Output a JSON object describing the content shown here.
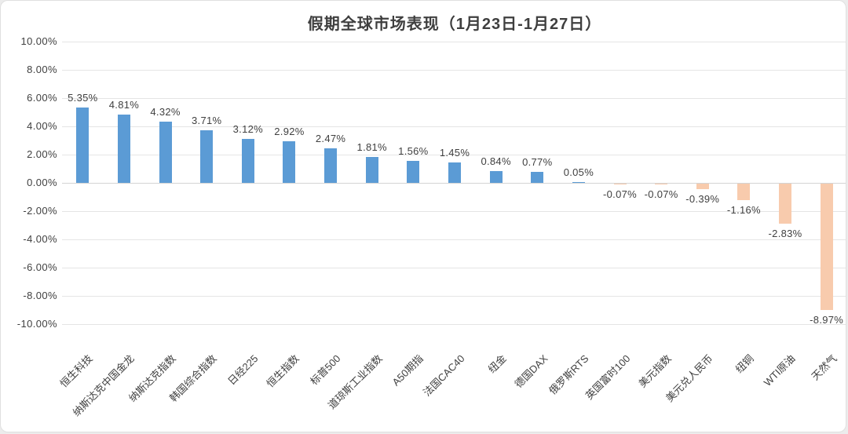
{
  "chart_data": {
    "type": "bar",
    "title": "假期全球市场表现（1月23日-1月27日）",
    "categories": [
      "恒生科技",
      "纳斯达克中国金龙",
      "纳斯达克指数",
      "韩国综合指数",
      "日经225",
      "恒生指数",
      "标普500",
      "道琼斯工业指数",
      "A50期指",
      "法国CAC40",
      "纽金",
      "德国DAX",
      "俄罗斯RTS",
      "英国富时100",
      "美元指数",
      "美元兑人民币",
      "纽铜",
      "WTI原油",
      "天然气"
    ],
    "values": [
      5.35,
      4.81,
      4.32,
      3.71,
      3.12,
      2.92,
      2.47,
      1.81,
      1.56,
      1.45,
      0.84,
      0.77,
      0.05,
      -0.07,
      -0.07,
      -0.39,
      -1.16,
      -2.83,
      -8.97
    ],
    "data_labels": [
      "5.35%",
      "4.81%",
      "4.32%",
      "3.71%",
      "3.12%",
      "2.92%",
      "2.47%",
      "1.81%",
      "1.56%",
      "1.45%",
      "0.84%",
      "0.77%",
      "0.05%",
      "-0.07%",
      "-0.07%",
      "-0.39%",
      "-1.16%",
      "-2.83%",
      "-8.97%"
    ],
    "xlabel": "",
    "ylabel": "",
    "ylim": [
      -10,
      10
    ],
    "grid": true,
    "legend": false,
    "y_axis": {
      "ticks": [
        {
          "value": 10,
          "label": "10.00%"
        },
        {
          "value": 8,
          "label": "8.00%"
        },
        {
          "value": 6,
          "label": "6.00%"
        },
        {
          "value": 4,
          "label": "4.00%"
        },
        {
          "value": 2,
          "label": "2.00%"
        },
        {
          "value": 0,
          "label": "0.00%"
        },
        {
          "value": -2,
          "label": "-2.00%"
        },
        {
          "value": -4,
          "label": "-4.00%"
        },
        {
          "value": -6,
          "label": "-6.00%"
        },
        {
          "value": -8,
          "label": "-8.00%"
        },
        {
          "value": -10,
          "label": "-10.00%"
        }
      ]
    },
    "colors": {
      "positive_bar": "#5B9BD5",
      "negative_bar": "#F8CBAD",
      "text": "#404040",
      "gridline": "#E5E5E5",
      "zero_line": "#D4D4D4"
    }
  }
}
